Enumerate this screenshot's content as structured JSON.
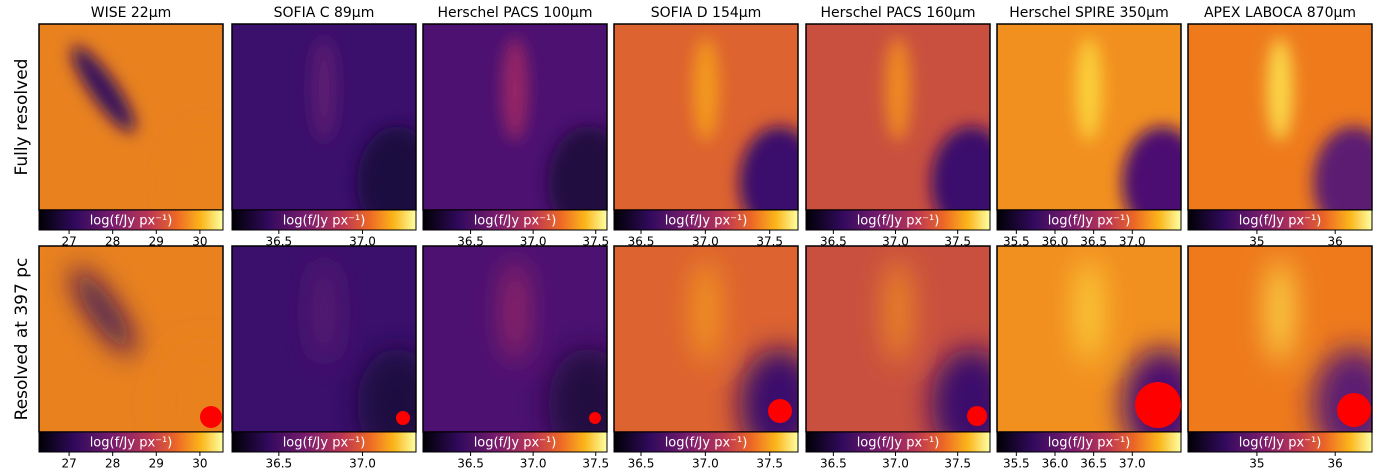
{
  "columns": [
    "WISE 22μm",
    "SOFIA C 89μm",
    "Herschel PACS 100μm",
    "SOFIA D 154μm",
    "Herschel PACS 160μm",
    "Herschel SPIRE 350μm",
    "APEX LABOCA 870μm"
  ],
  "rows": [
    {
      "label": "Fully resolved",
      "colorbars": [
        {
          "label": "log(f/Jy px⁻¹)",
          "xlim": [
            26.31,
            30.53
          ],
          "xticks": [
            27,
            28,
            29,
            30
          ]
        },
        {
          "label": "log(f/Jy px⁻¹)",
          "xlim": [
            36.22,
            37.32
          ],
          "xticks": [
            36.5,
            {
              "value": 37,
              "label": "37.0"
            }
          ]
        },
        {
          "label": "log(f/Jy px⁻¹)",
          "xlim": [
            36.12,
            37.59
          ],
          "xticks": [
            36.5,
            {
              "value": 37,
              "label": "37.0"
            },
            37.5
          ]
        },
        {
          "label": "log(f/Jy px⁻¹)",
          "xlim": [
            36.29,
            37.72
          ],
          "xticks": [
            36.5,
            {
              "value": 37,
              "label": "37.0"
            },
            37.5
          ]
        },
        {
          "label": "log(f/Jy px⁻¹)",
          "xlim": [
            36.28,
            37.76
          ],
          "xticks": [
            36.5,
            {
              "value": 37,
              "label": "37.0"
            },
            37.5
          ]
        },
        {
          "label": "log(f/Jy px⁻¹)",
          "xlim": [
            35.25,
            37.63
          ],
          "xticks": [
            35.5,
            {
              "value": 36,
              "label": "36.0"
            },
            36.5,
            {
              "value": 37,
              "label": "37.0"
            }
          ]
        },
        {
          "label": "log(f/Jy px⁻¹)",
          "xlim": [
            34.12,
            36.47
          ],
          "xticks": [
            35,
            36
          ]
        }
      ]
    },
    {
      "label": "Resolved at 397 pc",
      "colorbars": [
        {
          "label": "log(f/Jy px⁻¹)",
          "xlim": [
            26.31,
            30.53
          ],
          "xticks": [
            27,
            28,
            29,
            30
          ]
        },
        {
          "label": "log(f/Jy px⁻¹)",
          "xlim": [
            36.22,
            37.32
          ],
          "xticks": [
            36.5,
            {
              "value": 37,
              "label": "37.0"
            }
          ]
        },
        {
          "label": "log(f/Jy px⁻¹)",
          "xlim": [
            36.12,
            37.59
          ],
          "xticks": [
            36.5,
            {
              "value": 37,
              "label": "37.0"
            },
            37.5
          ]
        },
        {
          "label": "log(f/Jy px⁻¹)",
          "xlim": [
            36.29,
            37.72
          ],
          "xticks": [
            36.5,
            {
              "value": 37,
              "label": "37.0"
            },
            37.5
          ]
        },
        {
          "label": "log(f/Jy px⁻¹)",
          "xlim": [
            36.28,
            37.76
          ],
          "xticks": [
            36.5,
            {
              "value": 37,
              "label": "37.0"
            },
            37.5
          ]
        },
        {
          "label": "log(f/Jy px⁻¹)",
          "xlim": [
            35.25,
            37.63
          ],
          "xticks": [
            35.5,
            {
              "value": 36,
              "label": "36.0"
            },
            36.5,
            {
              "value": 37,
              "label": "37.0"
            }
          ]
        },
        {
          "label": "log(f/Jy px⁻¹)",
          "xlim": [
            34.12,
            36.47
          ],
          "xticks": [
            35,
            36
          ]
        }
      ]
    }
  ]
}
